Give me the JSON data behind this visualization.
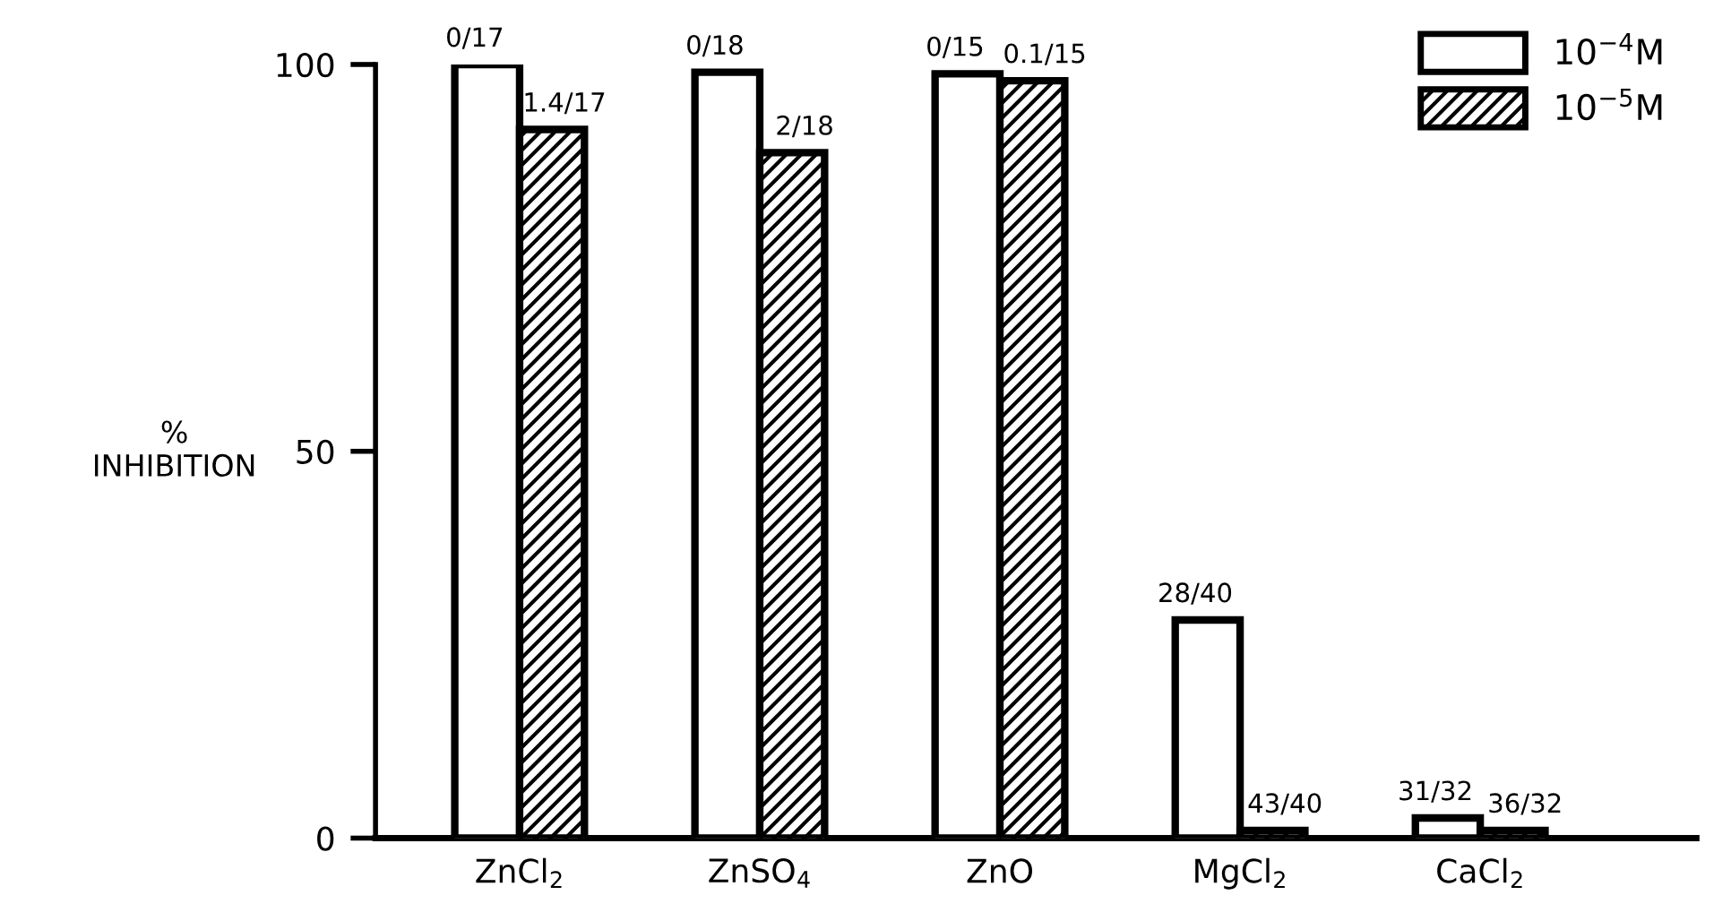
{
  "chart_data": {
    "type": "bar",
    "ylabel": "%\nINHIBITION",
    "categories": [
      "ZnCl$_{2}$",
      "ZnSO$_{4}$",
      "ZnO",
      "MgCl$_{2}$",
      "CaCl$_{2}$"
    ],
    "series": [
      {
        "name": "10$^{−4}$M",
        "color": "#ffffff",
        "values": [
          100,
          99,
          98.8,
          28.2,
          2.6
        ],
        "value_labels": [
          "0/17",
          "0/18",
          "0/15",
          "28/40",
          "31/32"
        ]
      },
      {
        "name": "10$^{−5}$M",
        "color": "#000000",
        "values": [
          91.6,
          88.6,
          97.9,
          1,
          1
        ],
        "value_labels": [
          "1.4/17",
          "2/18",
          "0.1/15",
          "43/40",
          "36/32"
        ]
      }
    ],
    "ylim": [
      0,
      100
    ],
    "yticks": [
      0,
      50,
      100
    ],
    "grid": false,
    "legend": "top right"
  }
}
